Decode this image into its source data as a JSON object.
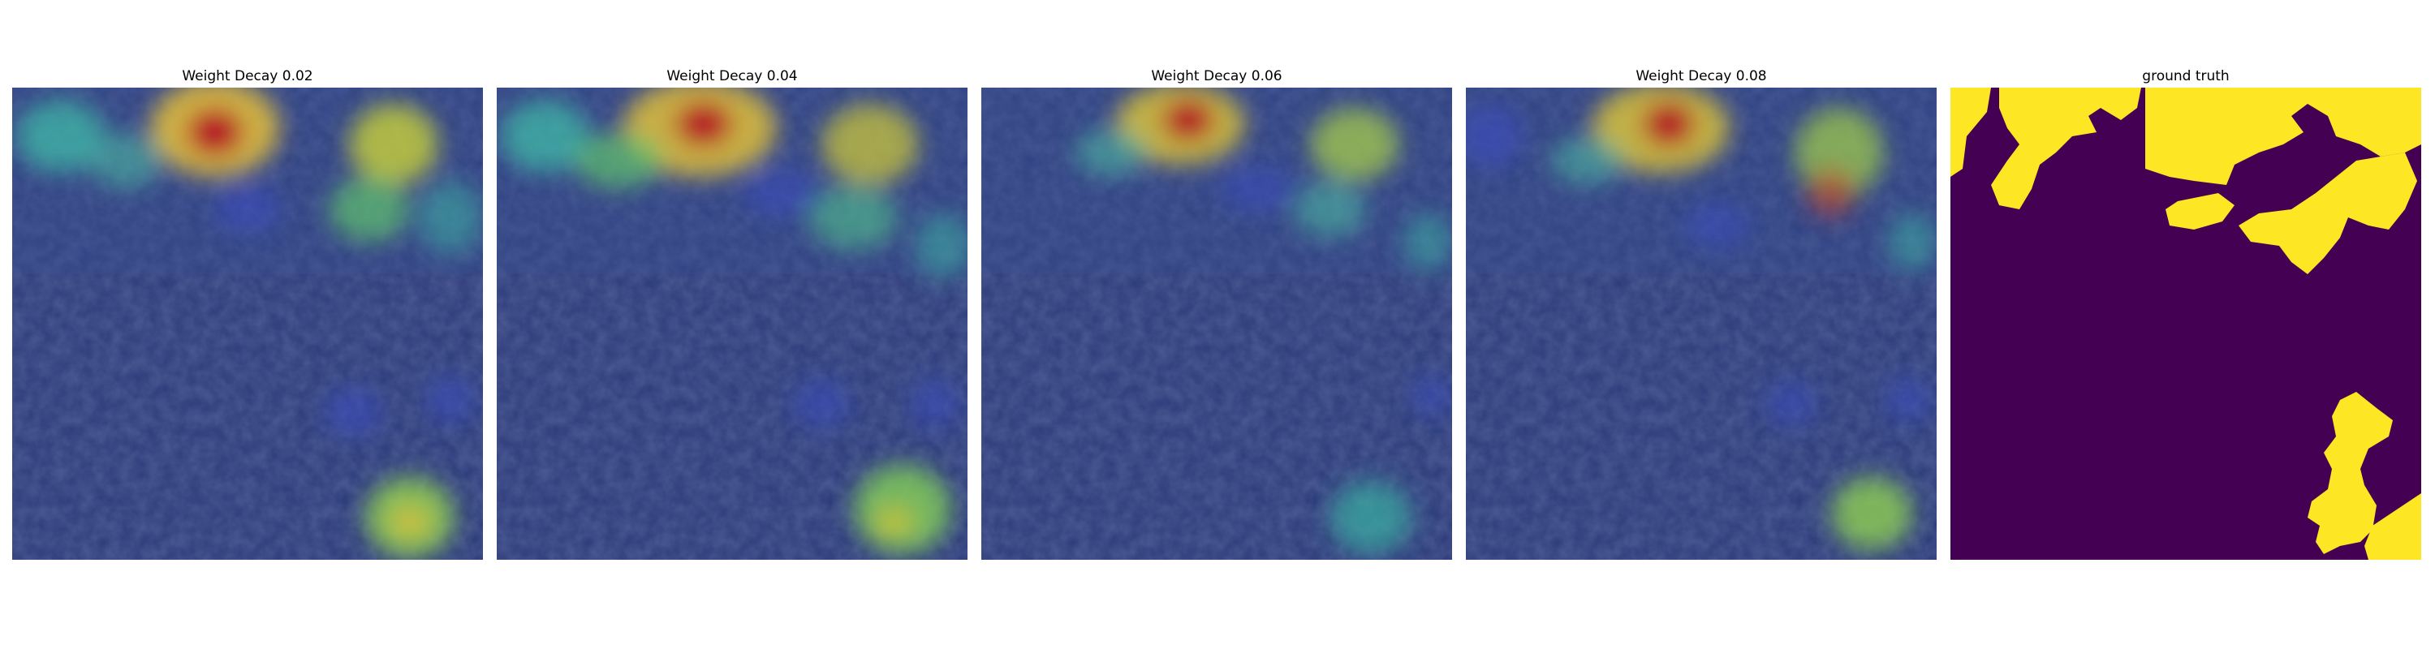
{
  "figure": {
    "panels": [
      {
        "title": "Weight Decay 0.02",
        "kind": "heatmap-overlay"
      },
      {
        "title": "Weight Decay 0.04",
        "kind": "heatmap-overlay"
      },
      {
        "title": "Weight Decay 0.06",
        "kind": "heatmap-overlay"
      },
      {
        "title": "Weight Decay 0.08",
        "kind": "heatmap-overlay"
      },
      {
        "title": "ground truth",
        "kind": "mask"
      }
    ],
    "colors": {
      "mask_background": "#440154",
      "mask_foreground": "#fde725",
      "overlay_base": "#2a3a78",
      "heat_low": "#3b4cc0",
      "heat_mid": "#5ec26a",
      "heat_high": "#b40426"
    }
  }
}
